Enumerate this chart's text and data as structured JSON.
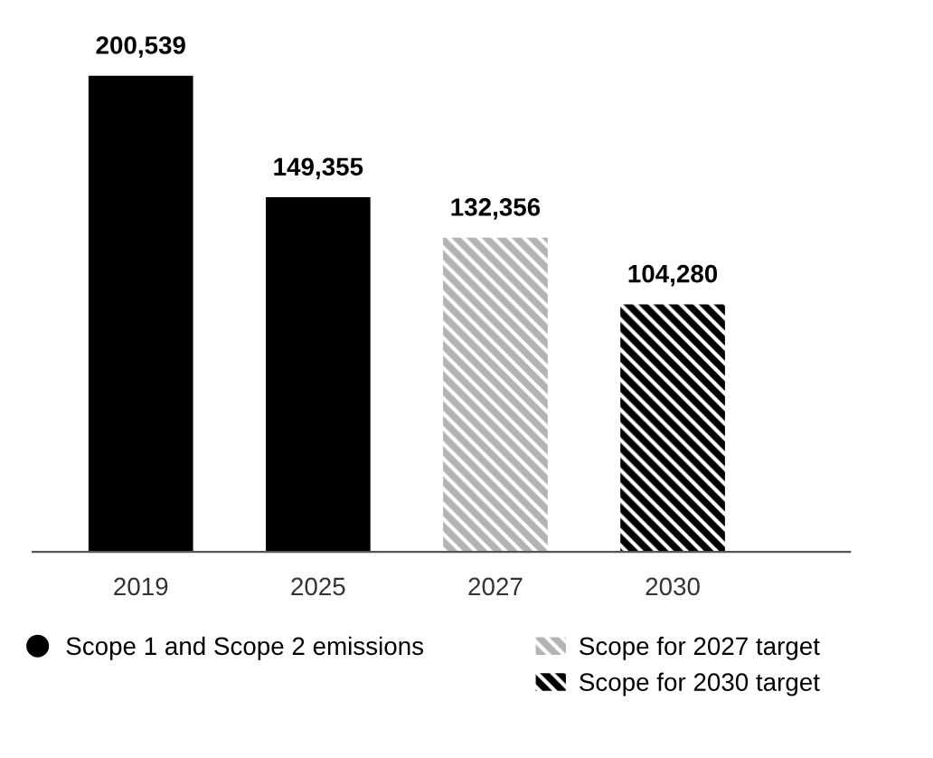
{
  "chart_data": {
    "type": "bar",
    "categories": [
      "2019",
      "2025",
      "2027",
      "2030"
    ],
    "series": [
      {
        "name": "Scope 1 and Scope 2 emissions",
        "color": "#000000",
        "values": [
          200539,
          149355,
          null,
          null
        ],
        "value_labels": [
          "200,539",
          "149,355",
          null,
          null
        ]
      },
      {
        "name": "Scope for 2027 target",
        "color": "#b3b3b3",
        "values": [
          null,
          null,
          132356,
          null
        ],
        "value_labels": [
          null,
          null,
          "132,356",
          null
        ]
      },
      {
        "name": "Scope for 2030 target",
        "color": "#000000",
        "values": [
          null,
          null,
          null,
          104280
        ],
        "value_labels": [
          null,
          null,
          null,
          "104,280"
        ]
      }
    ],
    "legend": "bottom",
    "grid": false
  }
}
